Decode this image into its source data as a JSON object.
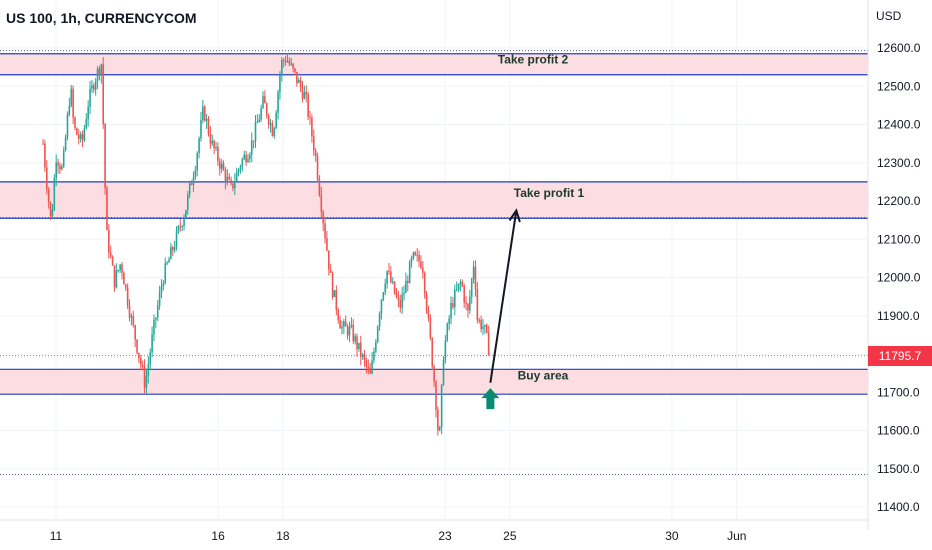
{
  "header": {
    "symbol_title": "US 100, 1h, CURRENCYCOM",
    "currency": "USD"
  },
  "price_tag": {
    "value": "11795.7",
    "color": "#f23645"
  },
  "colors": {
    "up": "#26a69a",
    "down": "#ef5350",
    "zone_fill": "#fcdde1",
    "zone_border": "#1e3fc4",
    "arrow": "#131722",
    "buy_marker": "#0b8a72",
    "grid": "#f0f3fa"
  },
  "chart_data": {
    "type": "candlestick",
    "title": "US 100, 1h, CURRENCYCOM",
    "y_unit": "USD",
    "ylim": [
      11380,
      12660
    ],
    "y_ticks": [
      "12600.0",
      "12500.0",
      "12400.0",
      "12300.0",
      "12200.0",
      "12100.0",
      "12000.0",
      "11900.0",
      "11800.0",
      "11700.0",
      "11600.0",
      "11500.0",
      "11400.0"
    ],
    "y_tick_values": [
      12600,
      12500,
      12400,
      12300,
      12200,
      12100,
      12000,
      11900,
      11800,
      11700,
      11600,
      11500,
      11400
    ],
    "x_ticks": [
      {
        "label": "11",
        "day": 11
      },
      {
        "label": "16",
        "day": 16
      },
      {
        "label": "18",
        "day": 18
      },
      {
        "label": "23",
        "day": 23
      },
      {
        "label": "25",
        "day": 25
      },
      {
        "label": "30",
        "day": 30
      },
      {
        "label": "Jun",
        "day": 32
      }
    ],
    "x_range_days": [
      10.6,
      33.2
    ],
    "last_price": 11795.7,
    "zones": [
      {
        "label": "Take profit 2",
        "low": 12530,
        "high": 12585
      },
      {
        "label": "Take profit 1",
        "low": 12155,
        "high": 12250
      },
      {
        "label": "Buy area",
        "low": 11695,
        "high": 11760
      }
    ],
    "dotted_levels": [
      12593,
      12157,
      11485
    ],
    "projection": {
      "from_day": 24.4,
      "from_price": 11725,
      "to_day": 25.2,
      "to_price": 12175
    },
    "buy_marker": {
      "day": 24.4,
      "price": 11690
    },
    "path_keypoints": [
      {
        "day": 10.6,
        "price": 12350
      },
      {
        "day": 10.7,
        "price": 12260
      },
      {
        "day": 10.85,
        "price": 12140
      },
      {
        "day": 11.0,
        "price": 12320
      },
      {
        "day": 11.2,
        "price": 12280
      },
      {
        "day": 11.45,
        "price": 12500
      },
      {
        "day": 11.55,
        "price": 12390
      },
      {
        "day": 11.8,
        "price": 12350
      },
      {
        "day": 12.0,
        "price": 12460
      },
      {
        "day": 12.2,
        "price": 12520
      },
      {
        "day": 12.4,
        "price": 12560
      },
      {
        "day": 12.5,
        "price": 12280
      },
      {
        "day": 12.55,
        "price": 12120
      },
      {
        "day": 12.8,
        "price": 11990
      },
      {
        "day": 13.0,
        "price": 12040
      },
      {
        "day": 13.3,
        "price": 11900
      },
      {
        "day": 13.5,
        "price": 11820
      },
      {
        "day": 13.75,
        "price": 11720
      },
      {
        "day": 14.0,
        "price": 11860
      },
      {
        "day": 14.3,
        "price": 12000
      },
      {
        "day": 14.7,
        "price": 12100
      },
      {
        "day": 15.0,
        "price": 12180
      },
      {
        "day": 15.3,
        "price": 12300
      },
      {
        "day": 15.55,
        "price": 12440
      },
      {
        "day": 15.8,
        "price": 12350
      },
      {
        "day": 16.1,
        "price": 12290
      },
      {
        "day": 16.4,
        "price": 12230
      },
      {
        "day": 16.7,
        "price": 12300
      },
      {
        "day": 17.0,
        "price": 12340
      },
      {
        "day": 17.4,
        "price": 12460
      },
      {
        "day": 17.7,
        "price": 12380
      },
      {
        "day": 17.95,
        "price": 12560
      },
      {
        "day": 18.1,
        "price": 12575
      },
      {
        "day": 18.3,
        "price": 12540
      },
      {
        "day": 18.7,
        "price": 12470
      },
      {
        "day": 19.0,
        "price": 12320
      },
      {
        "day": 19.2,
        "price": 12180
      },
      {
        "day": 19.5,
        "price": 11980
      },
      {
        "day": 19.8,
        "price": 11870
      },
      {
        "day": 20.1,
        "price": 11860
      },
      {
        "day": 20.4,
        "price": 11800
      },
      {
        "day": 20.7,
        "price": 11740
      },
      {
        "day": 21.0,
        "price": 11930
      },
      {
        "day": 21.2,
        "price": 12020
      },
      {
        "day": 21.6,
        "price": 11920
      },
      {
        "day": 22.0,
        "price": 12050
      },
      {
        "day": 22.3,
        "price": 12040
      },
      {
        "day": 22.55,
        "price": 11830
      },
      {
        "day": 22.7,
        "price": 11700
      },
      {
        "day": 22.82,
        "price": 11560
      },
      {
        "day": 22.95,
        "price": 11800
      },
      {
        "day": 23.2,
        "price": 11930
      },
      {
        "day": 23.5,
        "price": 11990
      },
      {
        "day": 23.7,
        "price": 11900
      },
      {
        "day": 23.9,
        "price": 12050
      },
      {
        "day": 24.0,
        "price": 11890
      },
      {
        "day": 24.2,
        "price": 11870
      },
      {
        "day": 24.4,
        "price": 11795.7
      }
    ],
    "grid": true,
    "legend": "none"
  },
  "annotations": {
    "take_profit_2": "Take profit 2",
    "take_profit_1": "Take profit 1",
    "buy_area": "Buy area"
  }
}
